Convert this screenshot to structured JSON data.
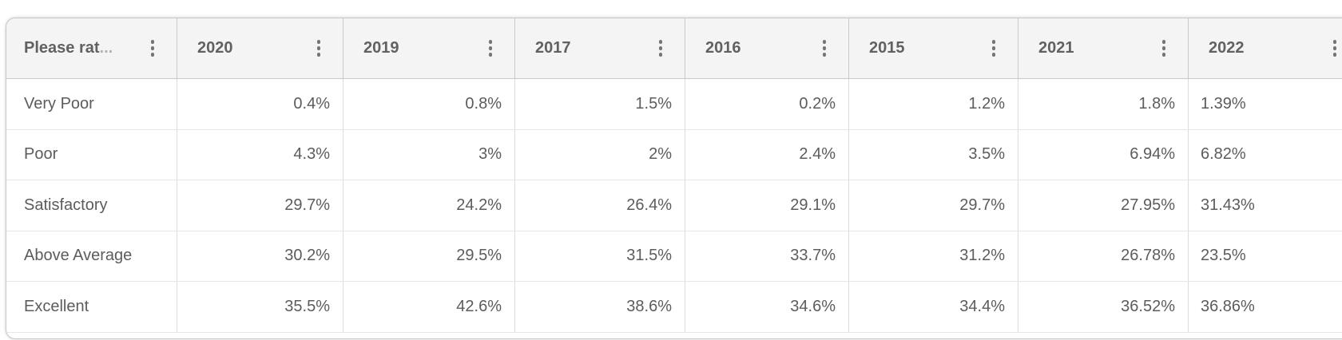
{
  "table": {
    "rating_column": {
      "label": "Please rat",
      "ellipsis": "...",
      "full_hint": "Please rat..."
    },
    "columns": [
      {
        "label": "2020"
      },
      {
        "label": "2019"
      },
      {
        "label": "2017"
      },
      {
        "label": "2016"
      },
      {
        "label": "2015"
      },
      {
        "label": "2021"
      },
      {
        "label": "2022"
      }
    ],
    "rows": [
      {
        "label": "Very Poor",
        "values": [
          "0.4%",
          "0.8%",
          "1.5%",
          "0.2%",
          "1.2%",
          "1.8%",
          "1.39%"
        ]
      },
      {
        "label": "Poor",
        "values": [
          "4.3%",
          "3%",
          "2%",
          "2.4%",
          "3.5%",
          "6.94%",
          "6.82%"
        ]
      },
      {
        "label": "Satisfactory",
        "values": [
          "29.7%",
          "24.2%",
          "26.4%",
          "29.1%",
          "29.7%",
          "27.95%",
          "31.43%"
        ]
      },
      {
        "label": "Above Average",
        "values": [
          "30.2%",
          "29.5%",
          "31.5%",
          "33.7%",
          "31.2%",
          "26.78%",
          "23.5%"
        ]
      },
      {
        "label": "Excellent",
        "values": [
          "35.5%",
          "42.6%",
          "38.6%",
          "34.6%",
          "34.4%",
          "36.52%",
          "36.86%"
        ]
      }
    ],
    "icons": {
      "column_menu": "kebab-menu"
    },
    "colors": {
      "header_bg": "#f4f4f4",
      "card_border": "#c6c6c6",
      "header_separator": "#c9c9c9",
      "row_separator": "#e7e7e7",
      "header_text": "#616161",
      "body_text": "#5c5c5c",
      "icon": "#757575"
    }
  }
}
